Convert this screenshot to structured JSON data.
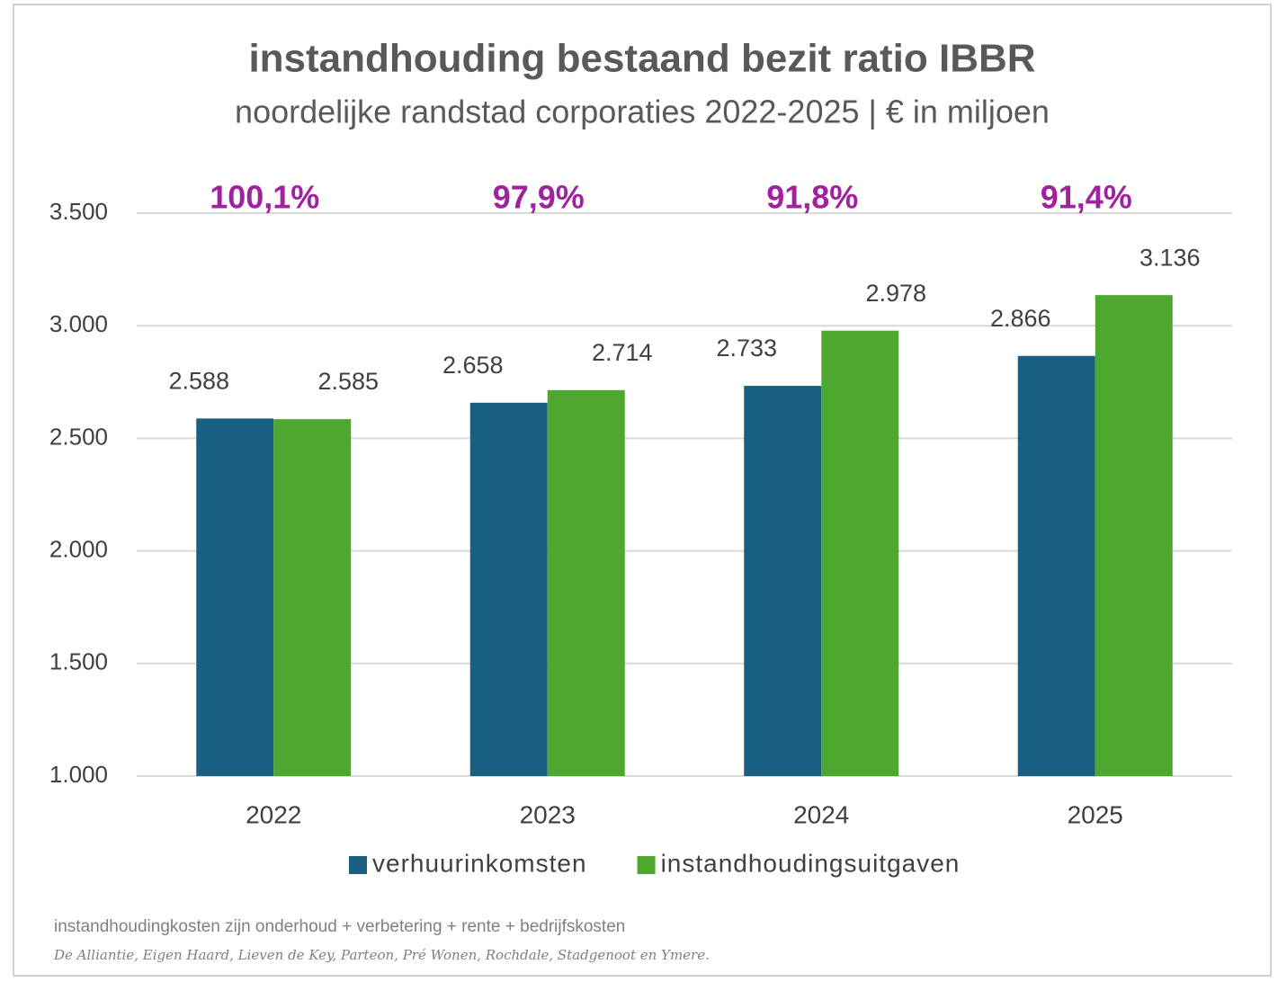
{
  "chart_data": {
    "type": "bar",
    "title": "instandhouding bestaand bezit ratio IBBR",
    "subtitle": "noordelijke randstad corporaties 2022-2025 | € in miljoen",
    "categories": [
      "2022",
      "2023",
      "2024",
      "2025"
    ],
    "annotations": [
      "100,1%",
      "97,9%",
      "91,8%",
      "91,4%"
    ],
    "annotation_color": "#a0229f",
    "series": [
      {
        "name": "verhuurinkomsten",
        "color": "#185f82",
        "values": [
          2588,
          2658,
          2733,
          2866
        ],
        "value_labels": [
          "2.588",
          "2.658",
          "2.733",
          "2.866"
        ]
      },
      {
        "name": "instandhoudingsuitgaven",
        "color": "#4ea72e",
        "values": [
          2585,
          2714,
          2978,
          3136
        ],
        "value_labels": [
          "2.585",
          "2.714",
          "2.978",
          "3.136"
        ]
      }
    ],
    "ylim": [
      1000,
      3500
    ],
    "yticks": [
      {
        "value": 1000,
        "label": "1.000"
      },
      {
        "value": 1500,
        "label": "1.500"
      },
      {
        "value": 2000,
        "label": "2.000"
      },
      {
        "value": 2500,
        "label": "2.500"
      },
      {
        "value": 3000,
        "label": "3.000"
      },
      {
        "value": 3500,
        "label": "3.500"
      }
    ],
    "grid": true,
    "legend": "bottom",
    "footnotes": [
      "instandhoudingkosten zijn onderhoud + verbetering + rente + bedrijfskosten",
      "De Alliantie, Eigen Haard, Lieven de Key, Parteon, Pré Wonen, Rochdale, Stadgenoot en Ymere."
    ]
  }
}
